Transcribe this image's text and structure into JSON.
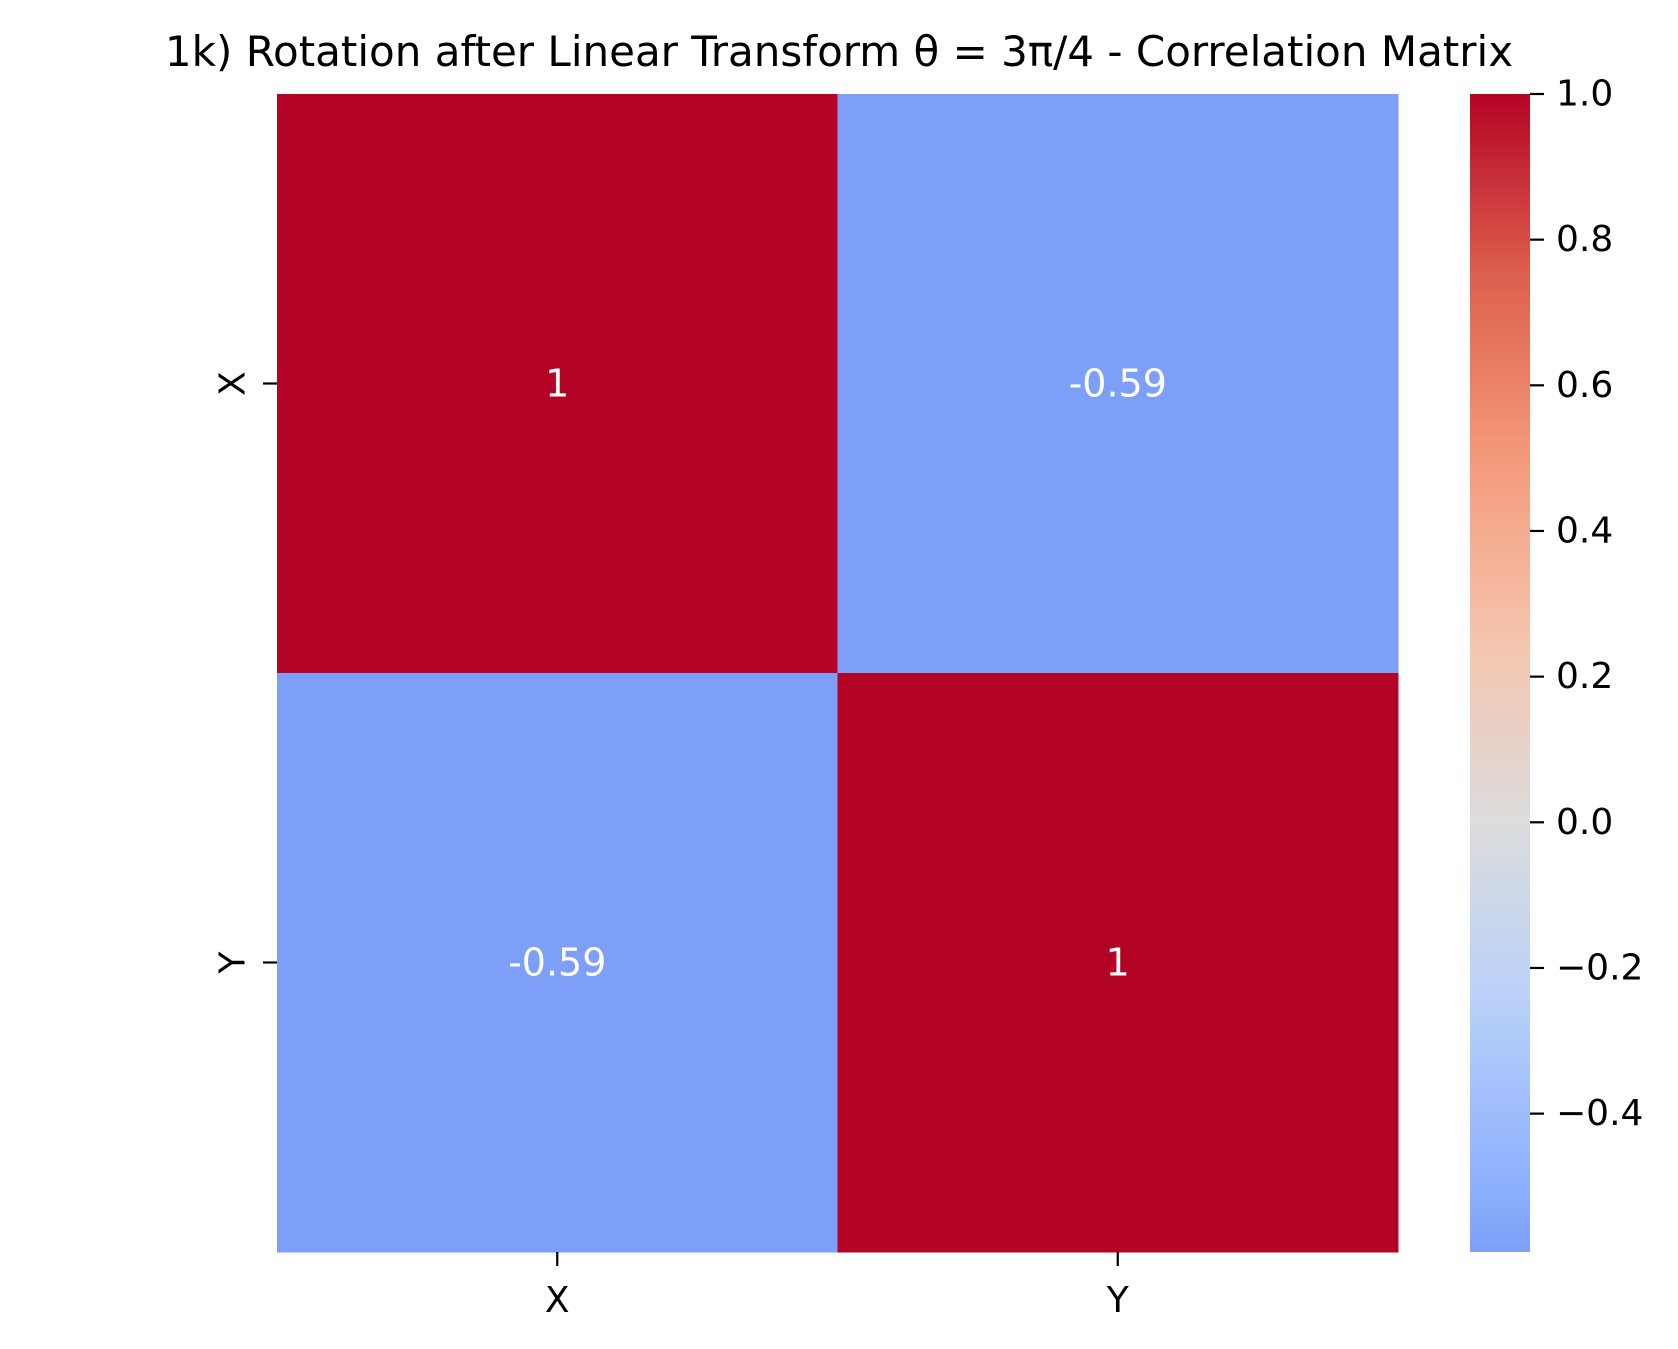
{
  "chart_data": {
    "type": "heatmap",
    "title": "1k) Rotation after Linear Transform θ = 3π/4 - Correlation Matrix",
    "x_categories": [
      "X",
      "Y"
    ],
    "y_categories": [
      "X",
      "Y"
    ],
    "values": [
      [
        1.0,
        -0.59
      ],
      [
        -0.59,
        1.0
      ]
    ],
    "annotations": [
      [
        "1",
        "-0.59"
      ],
      [
        "-0.59",
        "1"
      ]
    ],
    "colormap": "coolwarm",
    "colorbar": {
      "vmin": -0.59,
      "vmax": 1.0,
      "ticks": [
        1.0,
        0.8,
        0.6,
        0.4,
        0.2,
        0.0,
        -0.2,
        -0.4
      ],
      "tick_labels": [
        "1.0",
        "0.8",
        "0.6",
        "0.4",
        "0.2",
        "0.0",
        "−0.2",
        "−0.4"
      ]
    },
    "colors": {
      "high": "#b40426",
      "low": "#7ea1f6",
      "annotation_text": "#ffffff"
    }
  }
}
